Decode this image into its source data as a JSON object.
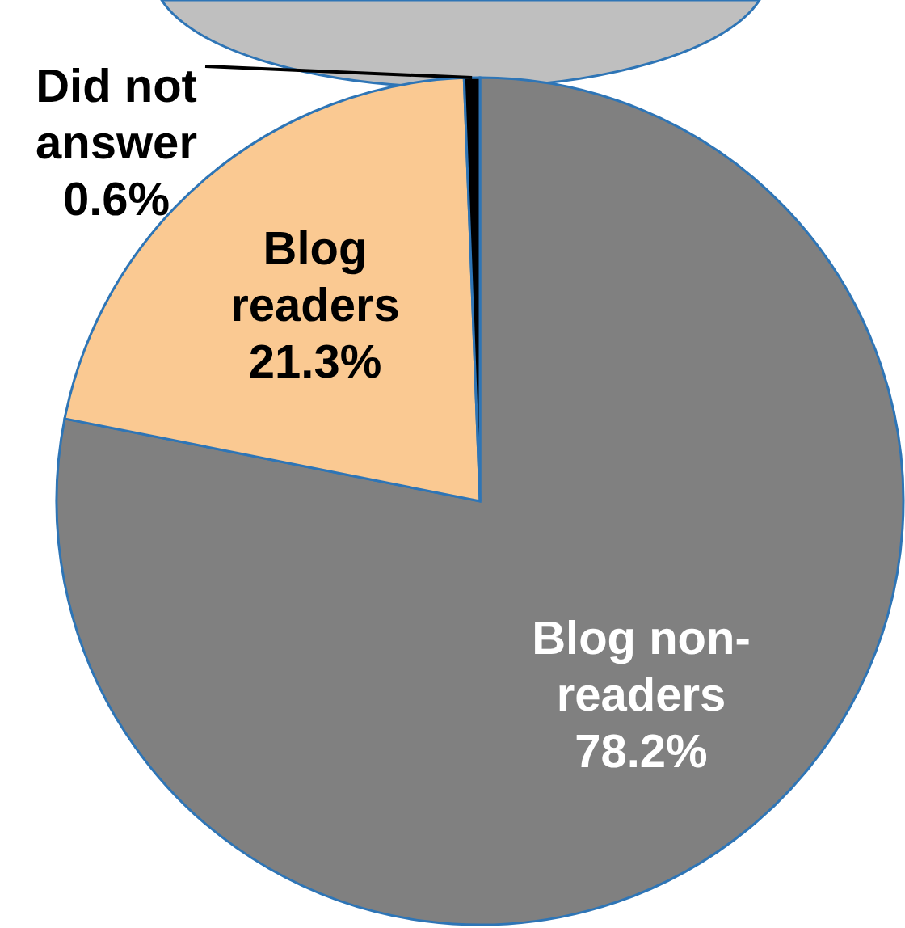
{
  "chart_data": {
    "type": "pie",
    "categories": [
      "Blog non-readers",
      "Blog readers",
      "Did not answer"
    ],
    "values": [
      78.2,
      21.3,
      0.6
    ],
    "value_labels": [
      "78.2%",
      "21.3%",
      "0.6%"
    ],
    "colors": [
      "#808080",
      "#fac992",
      "#000000"
    ]
  }
}
